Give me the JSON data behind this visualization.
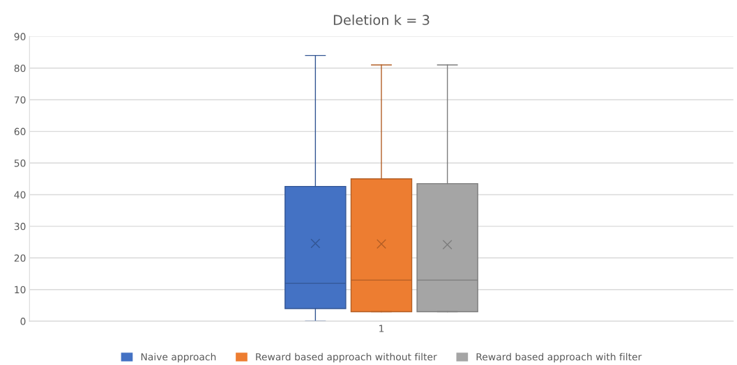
{
  "chart_data": {
    "type": "box",
    "title": "Deletion k = 3",
    "categories": [
      "1"
    ],
    "series": [
      {
        "name": "Naive approach",
        "color": "#4472c4",
        "boxes": [
          {
            "low": 0,
            "q1": 4,
            "median": 12,
            "q3": 42.6,
            "high": 84,
            "mean": 24.6
          }
        ]
      },
      {
        "name": "Reward based approach without filter",
        "color": "#ed7d31",
        "boxes": [
          {
            "low": 3,
            "q1": 3,
            "median": 13,
            "q3": 45,
            "high": 81,
            "mean": 24.4
          }
        ]
      },
      {
        "name": "Reward based approach with filter",
        "color": "#a5a5a5",
        "boxes": [
          {
            "low": 3,
            "q1": 3,
            "median": 13,
            "q3": 43.5,
            "high": 81,
            "mean": 24.2
          }
        ]
      }
    ],
    "ylim": [
      0,
      90
    ],
    "yticks": [
      0,
      10,
      20,
      30,
      40,
      50,
      60,
      70,
      80,
      90
    ],
    "grid": "y",
    "legend": "bottom"
  }
}
